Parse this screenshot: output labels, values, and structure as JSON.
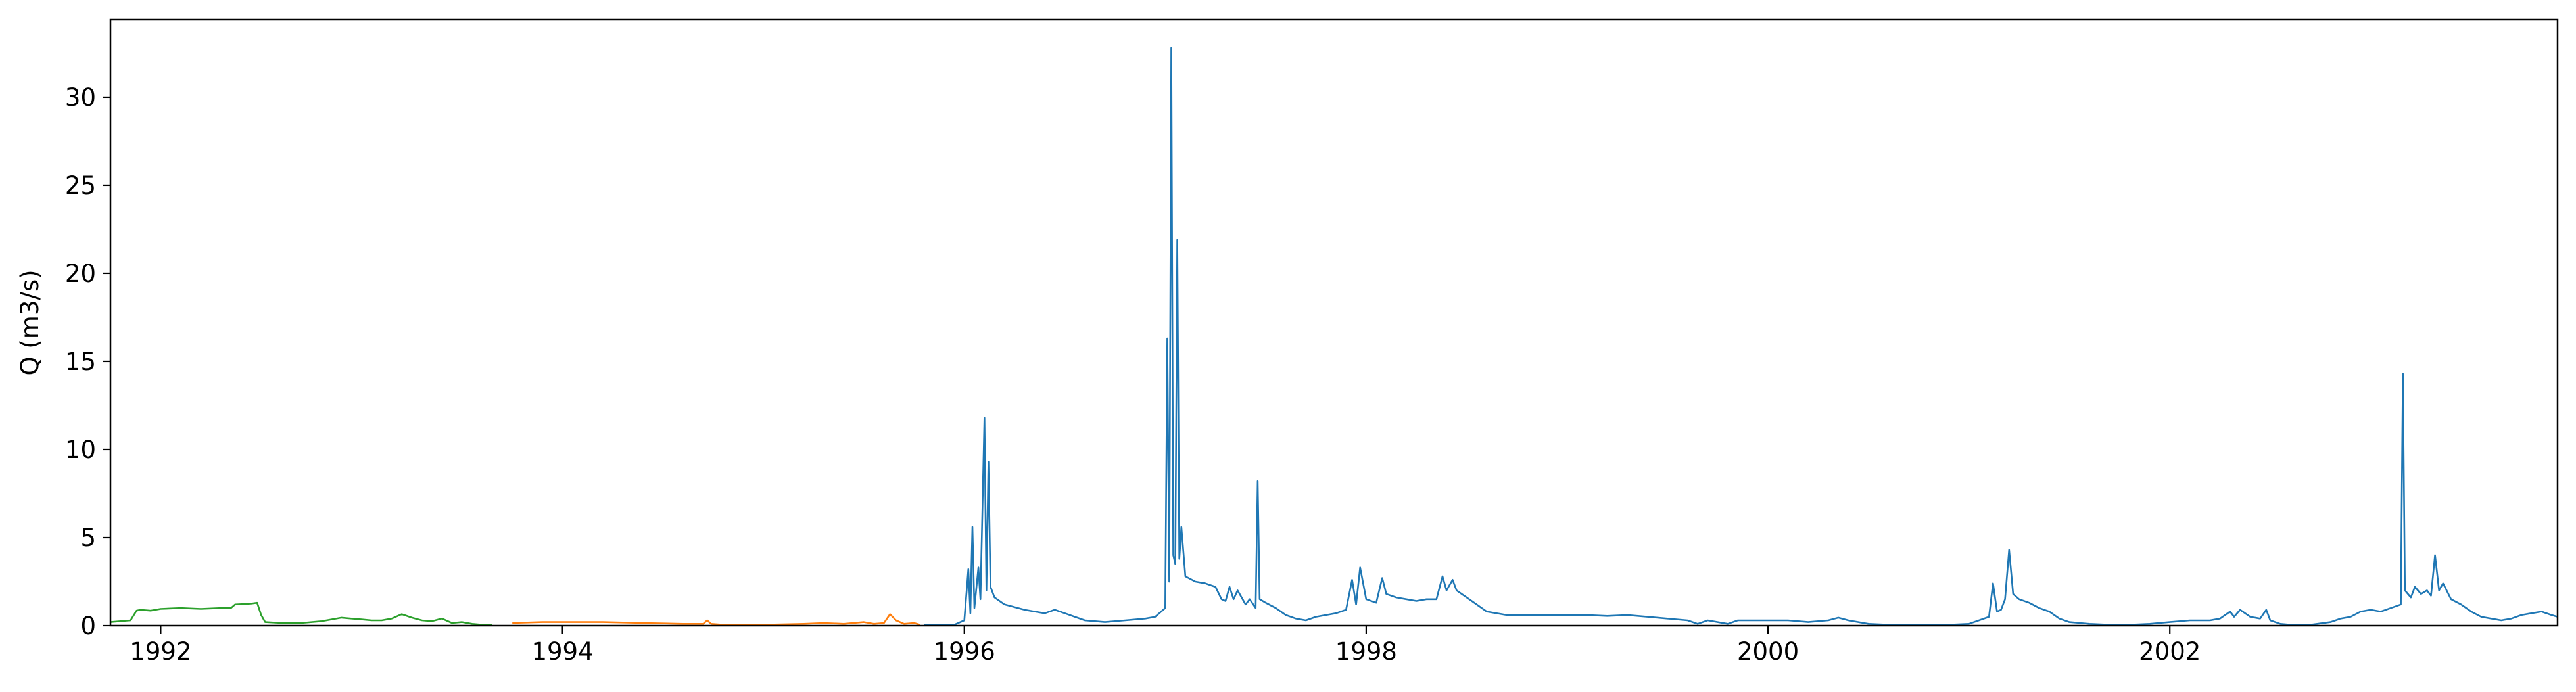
{
  "chart_data": {
    "type": "line",
    "title": "",
    "xlabel": "",
    "ylabel": "Q (m3/s)",
    "grid": false,
    "legend": "none",
    "xlim": [
      1991.75,
      2003.93
    ],
    "ylim": [
      0,
      34.4
    ],
    "x_ticks": [
      1992,
      1994,
      1996,
      1998,
      2000,
      2002
    ],
    "x_tick_labels": [
      "1992",
      "1994",
      "1996",
      "1998",
      "2000",
      "2002"
    ],
    "y_ticks": [
      0,
      5,
      10,
      15,
      20,
      25,
      30
    ],
    "y_tick_labels": [
      "0",
      "5",
      "10",
      "15",
      "20",
      "25",
      "30"
    ],
    "series": [
      {
        "color": "#2ca02c",
        "points": [
          [
            1991.75,
            0.2
          ],
          [
            1991.85,
            0.3
          ],
          [
            1991.88,
            0.85
          ],
          [
            1991.9,
            0.9
          ],
          [
            1991.95,
            0.85
          ],
          [
            1992.0,
            0.95
          ],
          [
            1992.1,
            1.0
          ],
          [
            1992.2,
            0.95
          ],
          [
            1992.3,
            1.0
          ],
          [
            1992.35,
            1.0
          ],
          [
            1992.37,
            1.2
          ],
          [
            1992.45,
            1.25
          ],
          [
            1992.48,
            1.3
          ],
          [
            1992.5,
            0.6
          ],
          [
            1992.52,
            0.2
          ],
          [
            1992.6,
            0.15
          ],
          [
            1992.7,
            0.15
          ],
          [
            1992.8,
            0.25
          ],
          [
            1992.85,
            0.35
          ],
          [
            1992.9,
            0.45
          ],
          [
            1992.95,
            0.4
          ],
          [
            1993.0,
            0.35
          ],
          [
            1993.05,
            0.3
          ],
          [
            1993.1,
            0.3
          ],
          [
            1993.15,
            0.4
          ],
          [
            1993.2,
            0.65
          ],
          [
            1993.25,
            0.45
          ],
          [
            1993.3,
            0.3
          ],
          [
            1993.35,
            0.25
          ],
          [
            1993.4,
            0.4
          ],
          [
            1993.45,
            0.15
          ],
          [
            1993.5,
            0.2
          ],
          [
            1993.55,
            0.1
          ],
          [
            1993.6,
            0.05
          ],
          [
            1993.65,
            0.05
          ]
        ]
      },
      {
        "color": "#ff7f0e",
        "points": [
          [
            1993.75,
            0.15
          ],
          [
            1993.9,
            0.2
          ],
          [
            1994.0,
            0.2
          ],
          [
            1994.2,
            0.2
          ],
          [
            1994.4,
            0.15
          ],
          [
            1994.6,
            0.1
          ],
          [
            1994.7,
            0.1
          ],
          [
            1994.72,
            0.3
          ],
          [
            1994.74,
            0.1
          ],
          [
            1994.8,
            0.05
          ],
          [
            1995.0,
            0.05
          ],
          [
            1995.2,
            0.1
          ],
          [
            1995.3,
            0.15
          ],
          [
            1995.4,
            0.1
          ],
          [
            1995.5,
            0.2
          ],
          [
            1995.55,
            0.1
          ],
          [
            1995.6,
            0.15
          ],
          [
            1995.63,
            0.65
          ],
          [
            1995.66,
            0.3
          ],
          [
            1995.7,
            0.1
          ],
          [
            1995.75,
            0.15
          ],
          [
            1995.78,
            0.05
          ]
        ]
      },
      {
        "color": "#1f77b4",
        "points": [
          [
            1995.8,
            0.05
          ],
          [
            1995.95,
            0.05
          ],
          [
            1996.0,
            0.3
          ],
          [
            1996.02,
            3.2
          ],
          [
            1996.03,
            0.7
          ],
          [
            1996.04,
            5.6
          ],
          [
            1996.05,
            1.0
          ],
          [
            1996.07,
            3.3
          ],
          [
            1996.08,
            1.5
          ],
          [
            1996.1,
            11.8
          ],
          [
            1996.11,
            2.0
          ],
          [
            1996.12,
            9.3
          ],
          [
            1996.13,
            2.2
          ],
          [
            1996.15,
            1.6
          ],
          [
            1996.2,
            1.2
          ],
          [
            1996.3,
            0.9
          ],
          [
            1996.35,
            0.8
          ],
          [
            1996.4,
            0.7
          ],
          [
            1996.45,
            0.9
          ],
          [
            1996.5,
            0.7
          ],
          [
            1996.55,
            0.5
          ],
          [
            1996.6,
            0.3
          ],
          [
            1996.7,
            0.2
          ],
          [
            1996.8,
            0.3
          ],
          [
            1996.9,
            0.4
          ],
          [
            1996.95,
            0.5
          ],
          [
            1997.0,
            1.0
          ],
          [
            1997.01,
            16.3
          ],
          [
            1997.02,
            2.5
          ],
          [
            1997.03,
            32.8
          ],
          [
            1997.04,
            4.0
          ],
          [
            1997.05,
            3.5
          ],
          [
            1997.06,
            21.9
          ],
          [
            1997.07,
            3.8
          ],
          [
            1997.08,
            5.6
          ],
          [
            1997.1,
            2.8
          ],
          [
            1997.15,
            2.5
          ],
          [
            1997.2,
            2.4
          ],
          [
            1997.25,
            2.2
          ],
          [
            1997.28,
            1.5
          ],
          [
            1997.3,
            1.4
          ],
          [
            1997.32,
            2.2
          ],
          [
            1997.34,
            1.5
          ],
          [
            1997.36,
            2.0
          ],
          [
            1997.4,
            1.2
          ],
          [
            1997.42,
            1.5
          ],
          [
            1997.45,
            1.0
          ],
          [
            1997.46,
            8.2
          ],
          [
            1997.47,
            1.5
          ],
          [
            1997.5,
            1.3
          ],
          [
            1997.55,
            1.0
          ],
          [
            1997.6,
            0.6
          ],
          [
            1997.65,
            0.4
          ],
          [
            1997.7,
            0.3
          ],
          [
            1997.75,
            0.5
          ],
          [
            1997.8,
            0.6
          ],
          [
            1997.85,
            0.7
          ],
          [
            1997.9,
            0.9
          ],
          [
            1997.93,
            2.6
          ],
          [
            1997.95,
            1.2
          ],
          [
            1997.97,
            3.3
          ],
          [
            1998.0,
            1.5
          ],
          [
            1998.05,
            1.3
          ],
          [
            1998.08,
            2.7
          ],
          [
            1998.1,
            1.8
          ],
          [
            1998.15,
            1.6
          ],
          [
            1998.2,
            1.5
          ],
          [
            1998.25,
            1.4
          ],
          [
            1998.3,
            1.5
          ],
          [
            1998.35,
            1.5
          ],
          [
            1998.38,
            2.8
          ],
          [
            1998.4,
            2.0
          ],
          [
            1998.43,
            2.6
          ],
          [
            1998.45,
            2.0
          ],
          [
            1998.5,
            1.6
          ],
          [
            1998.55,
            1.2
          ],
          [
            1998.6,
            0.8
          ],
          [
            1998.7,
            0.6
          ],
          [
            1998.8,
            0.6
          ],
          [
            1998.9,
            0.6
          ],
          [
            1999.0,
            0.6
          ],
          [
            1999.1,
            0.6
          ],
          [
            1999.2,
            0.55
          ],
          [
            1999.3,
            0.6
          ],
          [
            1999.4,
            0.5
          ],
          [
            1999.5,
            0.4
          ],
          [
            1999.6,
            0.3
          ],
          [
            1999.65,
            0.1
          ],
          [
            1999.7,
            0.3
          ],
          [
            1999.8,
            0.1
          ],
          [
            1999.85,
            0.3
          ],
          [
            1999.9,
            0.3
          ],
          [
            2000.0,
            0.3
          ],
          [
            2000.1,
            0.3
          ],
          [
            2000.2,
            0.2
          ],
          [
            2000.3,
            0.3
          ],
          [
            2000.35,
            0.45
          ],
          [
            2000.4,
            0.3
          ],
          [
            2000.5,
            0.1
          ],
          [
            2000.6,
            0.05
          ],
          [
            2000.7,
            0.05
          ],
          [
            2000.8,
            0.05
          ],
          [
            2000.9,
            0.05
          ],
          [
            2001.0,
            0.1
          ],
          [
            2001.05,
            0.3
          ],
          [
            2001.1,
            0.5
          ],
          [
            2001.12,
            2.4
          ],
          [
            2001.14,
            0.8
          ],
          [
            2001.16,
            0.9
          ],
          [
            2001.18,
            1.5
          ],
          [
            2001.2,
            4.3
          ],
          [
            2001.22,
            1.8
          ],
          [
            2001.25,
            1.5
          ],
          [
            2001.3,
            1.3
          ],
          [
            2001.35,
            1.0
          ],
          [
            2001.4,
            0.8
          ],
          [
            2001.45,
            0.4
          ],
          [
            2001.5,
            0.2
          ],
          [
            2001.6,
            0.1
          ],
          [
            2001.7,
            0.05
          ],
          [
            2001.8,
            0.05
          ],
          [
            2001.9,
            0.1
          ],
          [
            2002.0,
            0.2
          ],
          [
            2002.1,
            0.3
          ],
          [
            2002.2,
            0.3
          ],
          [
            2002.25,
            0.4
          ],
          [
            2002.3,
            0.8
          ],
          [
            2002.32,
            0.5
          ],
          [
            2002.35,
            0.9
          ],
          [
            2002.4,
            0.5
          ],
          [
            2002.45,
            0.4
          ],
          [
            2002.48,
            0.9
          ],
          [
            2002.5,
            0.3
          ],
          [
            2002.55,
            0.1
          ],
          [
            2002.6,
            0.05
          ],
          [
            2002.7,
            0.05
          ],
          [
            2002.8,
            0.2
          ],
          [
            2002.85,
            0.4
          ],
          [
            2002.9,
            0.5
          ],
          [
            2002.95,
            0.8
          ],
          [
            2003.0,
            0.9
          ],
          [
            2003.05,
            0.8
          ],
          [
            2003.1,
            1.0
          ],
          [
            2003.15,
            1.2
          ],
          [
            2003.16,
            14.3
          ],
          [
            2003.17,
            2.0
          ],
          [
            2003.2,
            1.6
          ],
          [
            2003.22,
            2.2
          ],
          [
            2003.25,
            1.8
          ],
          [
            2003.28,
            2.0
          ],
          [
            2003.3,
            1.7
          ],
          [
            2003.32,
            4.0
          ],
          [
            2003.34,
            2.0
          ],
          [
            2003.36,
            2.4
          ],
          [
            2003.4,
            1.5
          ],
          [
            2003.45,
            1.2
          ],
          [
            2003.5,
            0.8
          ],
          [
            2003.55,
            0.5
          ],
          [
            2003.6,
            0.4
          ],
          [
            2003.65,
            0.3
          ],
          [
            2003.7,
            0.4
          ],
          [
            2003.75,
            0.6
          ],
          [
            2003.8,
            0.7
          ],
          [
            2003.85,
            0.8
          ],
          [
            2003.9,
            0.6
          ],
          [
            2003.93,
            0.5
          ]
        ]
      }
    ]
  }
}
